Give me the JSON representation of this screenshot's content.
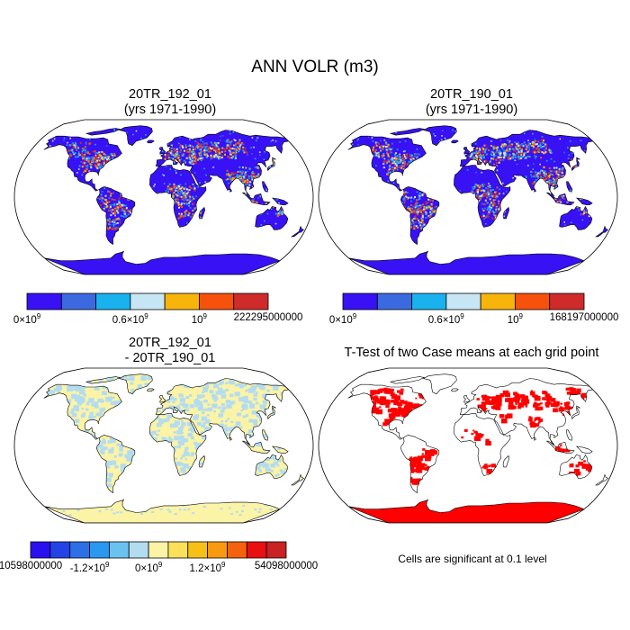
{
  "main_title": "ANN VOLR (m3)",
  "panels": [
    {
      "title_line1": "20TR_192_01",
      "title_line2": "(yrs 1971-1990)"
    },
    {
      "title_line1": "20TR_190_01",
      "title_line2": "(yrs 1971-1990)"
    },
    {
      "title_line1": "20TR_192_01",
      "title_line2": "- 20TR_190_01"
    },
    {
      "title_line1": "T-Test of two Case means at each grid point",
      "title_line2": ""
    }
  ],
  "colorbars": {
    "case1": {
      "colors": [
        "#3811f5",
        "#3b6ae0",
        "#1ab2ee",
        "#c7e6f5",
        "#f7b50c",
        "#f7520c",
        "#cf2b2b"
      ],
      "labels": [
        {
          "base": "0×10",
          "exp": "9",
          "pos": 0.0
        },
        {
          "base": "0.6×10",
          "exp": "9",
          "pos": 0.428
        },
        {
          "base": "10",
          "exp": "9",
          "pos": 0.714
        },
        {
          "base": "222295000000",
          "exp": "",
          "pos": 1.0
        }
      ]
    },
    "case2": {
      "colors": [
        "#3811f5",
        "#3b6ae0",
        "#1ab2ee",
        "#c7e6f5",
        "#f7b50c",
        "#f7520c",
        "#cf2b2b"
      ],
      "labels": [
        {
          "base": "0×10",
          "exp": "9",
          "pos": 0.0
        },
        {
          "base": "0.6×10",
          "exp": "9",
          "pos": 0.428
        },
        {
          "base": "10",
          "exp": "9",
          "pos": 0.714
        },
        {
          "base": "168197000000",
          "exp": "",
          "pos": 1.0
        }
      ]
    },
    "diff": {
      "colors": [
        "#2a10ee",
        "#2443e6",
        "#2d70e6",
        "#2b98f0",
        "#6cc2ef",
        "#b4dcf0",
        "#fbf3a6",
        "#fbe05a",
        "#f7c017",
        "#f79a0f",
        "#f5620d",
        "#e81010",
        "#c82222"
      ],
      "labels": [
        {
          "base": "10598000000",
          "exp": "",
          "pos": 0.0
        },
        {
          "base": "-1.2×10",
          "exp": "9",
          "pos": 0.231
        },
        {
          "base": "0×10",
          "exp": "9",
          "pos": 0.462
        },
        {
          "base": "1.2×10",
          "exp": "9",
          "pos": 0.692
        },
        {
          "base": "54098000000",
          "exp": "",
          "pos": 1.0
        }
      ]
    }
  },
  "significance_note": "Cells are significant at 0.1 level",
  "chart_data": [
    {
      "type": "heatmap",
      "title": "20TR_192_01 (yrs 1971-1990)",
      "variable": "ANN VOLR (m3)",
      "projection": "robinson",
      "colorbar_max": 222295000000,
      "colorbar_ticks": [
        0,
        600000000,
        1000000000
      ],
      "ocean": "white",
      "land_dominant_color": "#3811f5"
    },
    {
      "type": "heatmap",
      "title": "20TR_190_01 (yrs 1971-1990)",
      "variable": "ANN VOLR (m3)",
      "projection": "robinson",
      "colorbar_max": 168197000000,
      "colorbar_ticks": [
        0,
        600000000,
        1000000000
      ],
      "ocean": "white",
      "land_dominant_color": "#3811f5"
    },
    {
      "type": "heatmap",
      "title": "20TR_192_01 - 20TR_190_01",
      "variable": "ANN VOLR (m3)",
      "projection": "robinson",
      "colorbar_min_label": 10598000000,
      "colorbar_max": 54098000000,
      "colorbar_ticks": [
        -1200000000,
        0,
        1200000000
      ],
      "land_colors": [
        "#b4dcf0",
        "#fbf3a6"
      ]
    },
    {
      "type": "heatmap",
      "title": "T-Test of two Case means at each grid point",
      "projection": "robinson",
      "significant_color": "#ff0000",
      "significance_level": 0.1
    }
  ]
}
